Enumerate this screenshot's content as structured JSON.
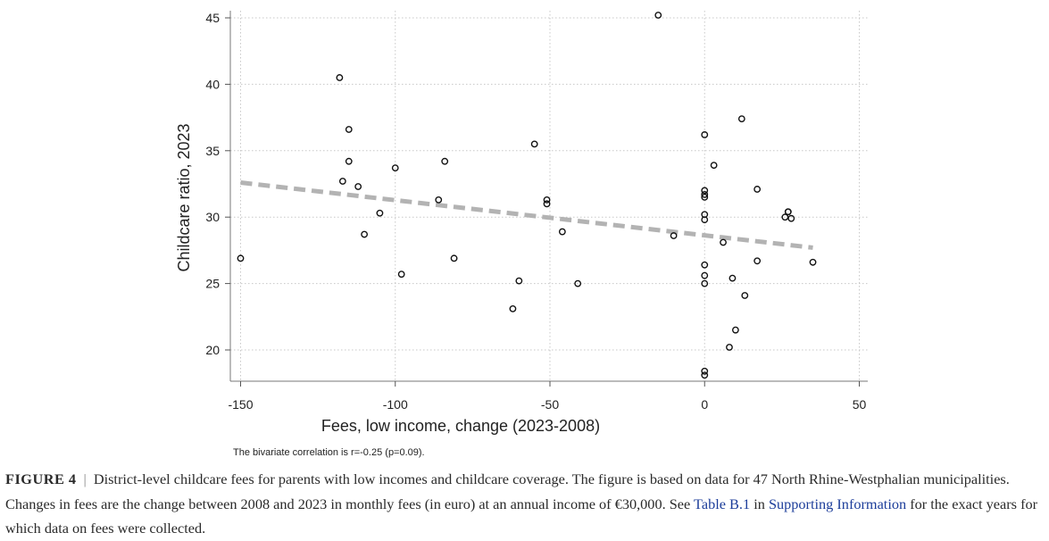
{
  "chart_data": {
    "type": "scatter",
    "xlabel": "Fees, low income, change (2023-2008)",
    "ylabel": "Childcare ratio, 2023",
    "xlim": [
      -150,
      50
    ],
    "ylim": [
      17.5,
      45.5
    ],
    "xticks": [
      -150,
      -100,
      -50,
      0,
      50
    ],
    "xtick_labels": [
      "-150",
      "-100",
      "-50",
      "0",
      "50"
    ],
    "yticks": [
      20,
      25,
      30,
      35,
      40,
      45
    ],
    "ytick_labels": [
      "20",
      "25",
      "30",
      "35",
      "40",
      "45"
    ],
    "grid": true,
    "note": "The bivariate correlation is r=-0.25 (p=0.09).",
    "trend_line": {
      "x": [
        -150,
        35
      ],
      "y": [
        32.6,
        27.7
      ]
    },
    "points": [
      {
        "x": -150,
        "y": 26.9
      },
      {
        "x": -118,
        "y": 40.5
      },
      {
        "x": -115,
        "y": 36.6
      },
      {
        "x": -115,
        "y": 34.2
      },
      {
        "x": -117,
        "y": 32.7
      },
      {
        "x": -112,
        "y": 32.3
      },
      {
        "x": -110,
        "y": 28.7
      },
      {
        "x": -105,
        "y": 30.3
      },
      {
        "x": -100,
        "y": 33.7
      },
      {
        "x": -98,
        "y": 25.7
      },
      {
        "x": -86,
        "y": 31.3
      },
      {
        "x": -84,
        "y": 34.2
      },
      {
        "x": -81,
        "y": 26.9
      },
      {
        "x": -62,
        "y": 23.1
      },
      {
        "x": -60,
        "y": 25.2
      },
      {
        "x": -55,
        "y": 35.5
      },
      {
        "x": -51,
        "y": 31.3
      },
      {
        "x": -51,
        "y": 31.0
      },
      {
        "x": -46,
        "y": 28.9
      },
      {
        "x": -41,
        "y": 25.0
      },
      {
        "x": -15,
        "y": 45.2
      },
      {
        "x": -10,
        "y": 28.6
      },
      {
        "x": 0,
        "y": 36.2
      },
      {
        "x": 0,
        "y": 32.0
      },
      {
        "x": 0,
        "y": 31.7
      },
      {
        "x": 0,
        "y": 31.5
      },
      {
        "x": 0,
        "y": 30.2
      },
      {
        "x": 0,
        "y": 29.8
      },
      {
        "x": 0,
        "y": 26.4
      },
      {
        "x": 0,
        "y": 25.6
      },
      {
        "x": 0,
        "y": 25.0
      },
      {
        "x": 0,
        "y": 18.4
      },
      {
        "x": 0,
        "y": 18.1
      },
      {
        "x": 3,
        "y": 33.9
      },
      {
        "x": 6,
        "y": 28.1
      },
      {
        "x": 8,
        "y": 20.2
      },
      {
        "x": 9,
        "y": 25.4
      },
      {
        "x": 10,
        "y": 21.5
      },
      {
        "x": 12,
        "y": 37.4
      },
      {
        "x": 13,
        "y": 24.1
      },
      {
        "x": 17,
        "y": 26.7
      },
      {
        "x": 17,
        "y": 32.1
      },
      {
        "x": 26,
        "y": 30.0
      },
      {
        "x": 27,
        "y": 30.4
      },
      {
        "x": 27,
        "y": 30.4
      },
      {
        "x": 28,
        "y": 29.9
      },
      {
        "x": 35,
        "y": 26.6
      }
    ]
  },
  "caption": {
    "label": "FIGURE 4",
    "separator": "|",
    "text_part1": "District-level childcare fees for parents with low incomes and childcare coverage. The figure is based on data for 47 North Rhine-Westphalian municipalities. Changes in fees are the change between 2008 and 2023 in monthly fees (in euro) at an annual income of €30,000. See",
    "table_link": "Table B.1",
    "text_part2": "in",
    "supporting_link": "Supporting Information",
    "text_part3": "for the exact years for which data on fees were collected."
  },
  "colors": {
    "trend": "#b3b3b3",
    "grid": "#c8c8c8",
    "marker": "#111111",
    "link": "#1c3d9a"
  }
}
